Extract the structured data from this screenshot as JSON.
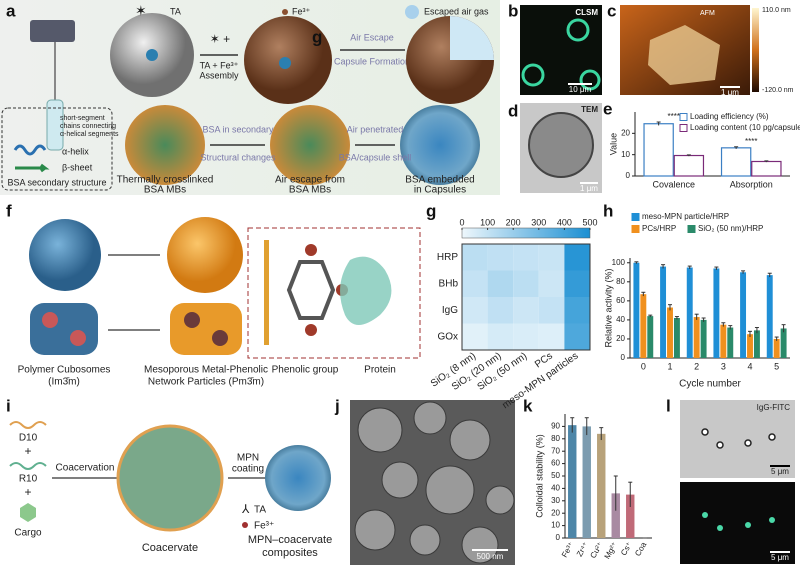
{
  "panel_a": {
    "label": "a",
    "ta": "TA",
    "fe": "Fe³⁺",
    "escaped": "Escaped air gas",
    "step1": [
      "TA + Fe³⁺",
      "Assembly"
    ],
    "stray": "g",
    "step2": [
      "Air Escape",
      "Capsule Formation"
    ],
    "legend": [
      "short-segment",
      "chains connecting",
      "α-helical segments"
    ],
    "helix": "α-helix",
    "sheet": "β-sheet",
    "secondary": "BSA secondary structure",
    "arrow1": [
      "BSA in secondary",
      "Structural changes"
    ],
    "arrow2": [
      "Air penetrated",
      "BSA/capsule shell"
    ],
    "captions": [
      [
        "Thermally crosslinked",
        "BSA MBs"
      ],
      [
        "Air escape from",
        "BSA MBs"
      ],
      [
        "BSA embedded",
        "in Capsules"
      ]
    ]
  },
  "panel_b": {
    "label": "b",
    "tag": "CLSM",
    "scale": "10 μm"
  },
  "panel_c": {
    "label": "c",
    "tag": "AFM",
    "max": "110.0 nm",
    "min": "-120.0 nm",
    "scale": "1 μm"
  },
  "panel_d": {
    "label": "d",
    "tag": "TEM",
    "scale": "1 μm"
  },
  "panel_f": {
    "label": "f",
    "cubosome": [
      "Polymer Cubosomes",
      "(Im3̄m)"
    ],
    "mpn": [
      "Mesoporous Metal-Phenolic",
      "Network Particles (Pm3̄m)"
    ],
    "phenolic": "Phenolic group",
    "protein": "Protein"
  },
  "panel_i": {
    "label": "i",
    "d10": "D10",
    "plus": [
      "+",
      "+"
    ],
    "r10": "R10",
    "cargo": "Cargo",
    "coacervation": "Coacervation",
    "coacervate": "Coacervate",
    "coating": [
      "MPN",
      "coating"
    ],
    "ta": "TA",
    "fe": "Fe³⁺",
    "composite": [
      "MPN–coacervate",
      "composites"
    ]
  },
  "panel_j": {
    "label": "j",
    "scale": "500 nm"
  },
  "panel_l": {
    "label": "l",
    "tag": "IgG-FITC",
    "scale_top": "5 μm",
    "scale_bottom": "5 μm"
  },
  "chart_data": [
    {
      "type": "bar",
      "panel": "e",
      "ylabel": "Value",
      "categories": [
        "Covalence",
        "Absorption"
      ],
      "bar_style": "outline",
      "series": [
        {
          "name": "Loading efficiency (%)",
          "color": "#3b7fc4",
          "values": [
            24.5,
            13.2
          ],
          "errors": [
            0.8,
            0.5
          ]
        },
        {
          "name": "Loading content (10 pg/capsules)",
          "color": "#7a2a78",
          "values": [
            9.6,
            6.8
          ],
          "errors": [
            0.3,
            0.3
          ]
        }
      ],
      "annotations": [
        "****",
        "****"
      ],
      "ylim": [
        0,
        30
      ],
      "yticks": [
        0,
        10,
        20
      ]
    },
    {
      "type": "heatmap",
      "panel": "g",
      "rows": [
        "HRP",
        "BHb",
        "IgG",
        "GOx"
      ],
      "columns": [
        "SiO₂ (8 nm)",
        "SiO₂ (20 nm)",
        "SiO₂ (50 nm)",
        "PCs",
        "meso-MPN particles"
      ],
      "values": [
        [
          120,
          110,
          100,
          90,
          470
        ],
        [
          100,
          150,
          120,
          80,
          440
        ],
        [
          70,
          110,
          80,
          100,
          400
        ],
        [
          30,
          60,
          50,
          40,
          380
        ]
      ],
      "clim": [
        0,
        500
      ],
      "cticks": [
        0,
        100,
        200,
        300,
        400,
        500
      ],
      "colors": [
        "#eef7fc",
        "#1b8fd2"
      ]
    },
    {
      "type": "bar",
      "panel": "h",
      "xlabel": "Cycle number",
      "ylabel": "Relative activity (%)",
      "categories": [
        "0",
        "1",
        "2",
        "3",
        "4",
        "5"
      ],
      "bar_style": "solid",
      "series": [
        {
          "name": "meso-MPN particle/HRP",
          "color": "#1f8fd6",
          "values": [
            100,
            96,
            95,
            94,
            90,
            87
          ],
          "errors": [
            1,
            2,
            1.5,
            1.5,
            1.5,
            2
          ]
        },
        {
          "name": "PCs/HRP",
          "color": "#f0901e",
          "values": [
            67,
            53,
            43,
            35,
            25,
            20
          ],
          "errors": [
            2,
            3,
            3,
            2,
            3,
            2
          ]
        },
        {
          "name": "SiO₂ (50 nm)/HRP",
          "color": "#2a8a6a",
          "values": [
            44,
            42,
            40,
            32,
            29,
            31
          ],
          "errors": [
            1,
            1.5,
            2,
            2,
            3,
            4
          ]
        }
      ],
      "ylim": [
        0,
        105
      ],
      "yticks": [
        0,
        20,
        40,
        60,
        80,
        100
      ]
    },
    {
      "type": "bar",
      "panel": "k",
      "ylabel": "Colloidal stability (%)",
      "categories": [
        "Fe³⁺",
        "Zr⁴⁺",
        "Cu²⁺",
        "Mg²⁺",
        "Cs⁺",
        "Coa"
      ],
      "bar_style": "solid",
      "series": [
        {
          "values": [
            91,
            90,
            84,
            36,
            35,
            0
          ],
          "errors": [
            6,
            7,
            5,
            14,
            10,
            0
          ]
        }
      ],
      "colors": [
        "#4d86a8",
        "#7c9cb0",
        "#b8a27a",
        "#a98aa2",
        "#c06a78",
        "#999999"
      ],
      "ylim": [
        0,
        100
      ],
      "yticks": [
        0,
        10,
        20,
        30,
        40,
        50,
        60,
        70,
        80,
        90
      ]
    }
  ]
}
